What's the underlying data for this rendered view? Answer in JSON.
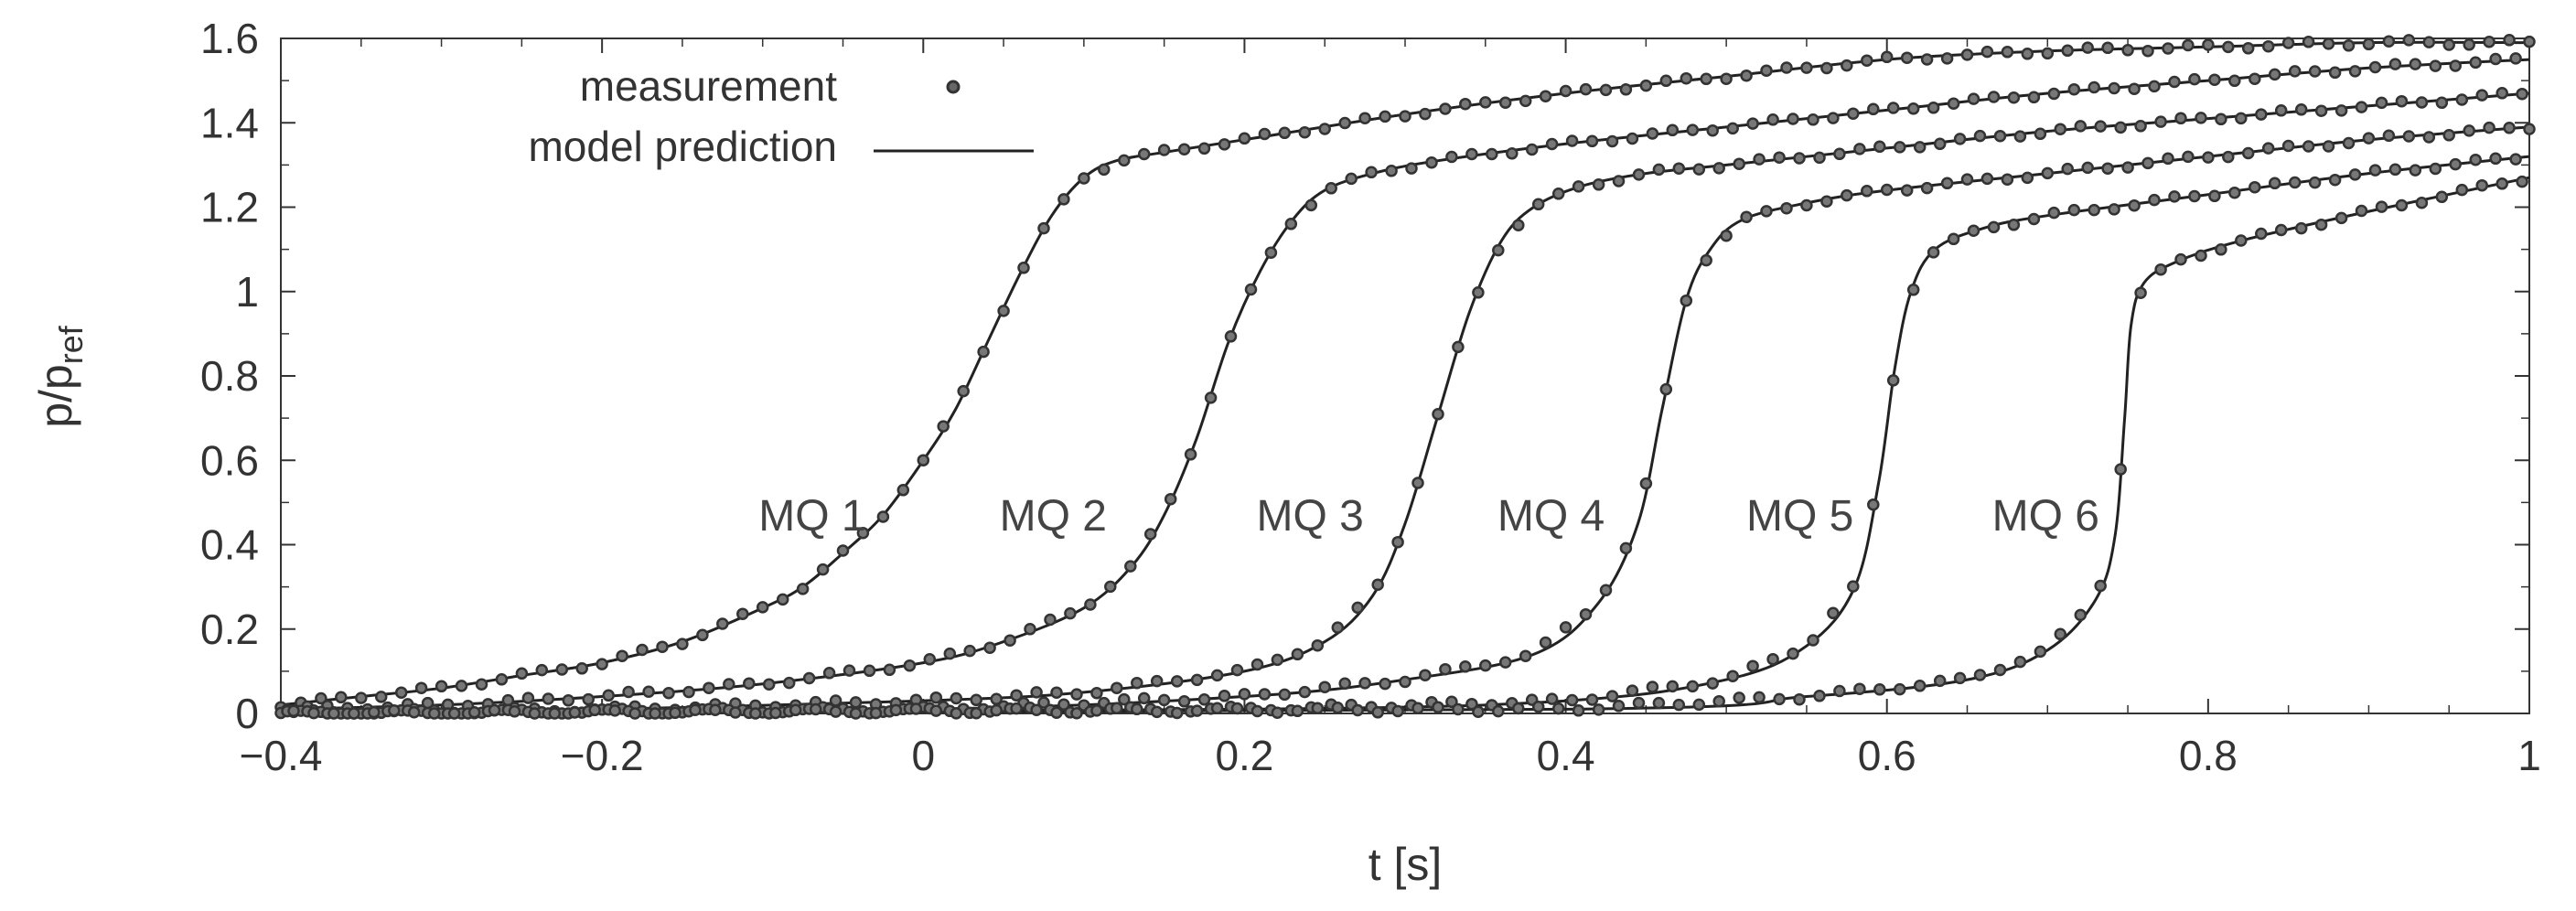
{
  "chart_data": {
    "type": "line",
    "title": "",
    "xlabel": "t [s]",
    "ylabel": "p/p",
    "ylabel_subscript": "ref",
    "xlim": [
      -0.4,
      1.0
    ],
    "ylim": [
      0,
      1.6
    ],
    "x_ticks": [
      -0.4,
      -0.2,
      0,
      0.2,
      0.4,
      0.6,
      0.8,
      1
    ],
    "x_tick_labels": [
      "−0.4",
      "−0.2",
      "0",
      "0.2",
      "0.4",
      "0.6",
      "0.8",
      "1"
    ],
    "y_ticks": [
      0,
      0.2,
      0.4,
      0.6,
      0.8,
      1,
      1.2,
      1.4,
      1.6
    ],
    "y_tick_labels": [
      "0",
      "0.2",
      "0.4",
      "0.6",
      "0.8",
      "1",
      "1.2",
      "1.4",
      "1.6"
    ],
    "grid": false,
    "legend": {
      "placement": "top-left",
      "entries": [
        {
          "label": "measurement",
          "style": "marker"
        },
        {
          "label": "model prediction",
          "style": "line"
        }
      ]
    },
    "series": [
      {
        "name": "MQ 1",
        "label_anchor": {
          "x": -0.03,
          "y": 0.47
        },
        "points": [
          [
            -0.4,
            0.02
          ],
          [
            -0.35,
            0.04
          ],
          [
            -0.3,
            0.06
          ],
          [
            -0.25,
            0.09
          ],
          [
            -0.2,
            0.12
          ],
          [
            -0.15,
            0.17
          ],
          [
            -0.1,
            0.25
          ],
          [
            -0.075,
            0.3
          ],
          [
            -0.05,
            0.38
          ],
          [
            -0.025,
            0.47
          ],
          [
            0,
            0.6
          ],
          [
            0.02,
            0.72
          ],
          [
            0.04,
            0.88
          ],
          [
            0.06,
            1.04
          ],
          [
            0.08,
            1.18
          ],
          [
            0.1,
            1.27
          ],
          [
            0.12,
            1.31
          ],
          [
            0.15,
            1.33
          ],
          [
            0.2,
            1.36
          ],
          [
            0.3,
            1.42
          ],
          [
            0.4,
            1.47
          ],
          [
            0.5,
            1.51
          ],
          [
            0.6,
            1.55
          ],
          [
            0.7,
            1.57
          ],
          [
            0.8,
            1.58
          ],
          [
            0.9,
            1.59
          ],
          [
            1.0,
            1.59
          ]
        ]
      },
      {
        "name": "MQ 2",
        "label_anchor": {
          "x": 0.12,
          "y": 0.47
        },
        "points": [
          [
            -0.4,
            0.01
          ],
          [
            -0.3,
            0.02
          ],
          [
            -0.2,
            0.04
          ],
          [
            -0.1,
            0.07
          ],
          [
            0,
            0.12
          ],
          [
            0.05,
            0.17
          ],
          [
            0.1,
            0.25
          ],
          [
            0.13,
            0.35
          ],
          [
            0.15,
            0.47
          ],
          [
            0.17,
            0.65
          ],
          [
            0.19,
            0.88
          ],
          [
            0.21,
            1.05
          ],
          [
            0.23,
            1.17
          ],
          [
            0.25,
            1.24
          ],
          [
            0.28,
            1.28
          ],
          [
            0.32,
            1.31
          ],
          [
            0.4,
            1.35
          ],
          [
            0.5,
            1.39
          ],
          [
            0.6,
            1.43
          ],
          [
            0.7,
            1.47
          ],
          [
            0.8,
            1.5
          ],
          [
            0.9,
            1.53
          ],
          [
            1.0,
            1.55
          ]
        ]
      },
      {
        "name": "MQ 3",
        "label_anchor": {
          "x": 0.28,
          "y": 0.47
        },
        "points": [
          [
            -0.4,
            0.0
          ],
          [
            -0.2,
            0.01
          ],
          [
            0,
            0.03
          ],
          [
            0.1,
            0.05
          ],
          [
            0.2,
            0.1
          ],
          [
            0.25,
            0.17
          ],
          [
            0.28,
            0.28
          ],
          [
            0.3,
            0.45
          ],
          [
            0.32,
            0.7
          ],
          [
            0.34,
            0.95
          ],
          [
            0.36,
            1.12
          ],
          [
            0.38,
            1.2
          ],
          [
            0.41,
            1.25
          ],
          [
            0.45,
            1.28
          ],
          [
            0.5,
            1.3
          ],
          [
            0.6,
            1.34
          ],
          [
            0.7,
            1.38
          ],
          [
            0.8,
            1.41
          ],
          [
            0.9,
            1.44
          ],
          [
            1.0,
            1.47
          ]
        ]
      },
      {
        "name": "MQ 4",
        "label_anchor": {
          "x": 0.43,
          "y": 0.47
        },
        "points": [
          [
            -0.4,
            0.0
          ],
          [
            0,
            0.01
          ],
          [
            0.2,
            0.04
          ],
          [
            0.3,
            0.08
          ],
          [
            0.38,
            0.14
          ],
          [
            0.42,
            0.26
          ],
          [
            0.445,
            0.45
          ],
          [
            0.46,
            0.72
          ],
          [
            0.475,
            0.98
          ],
          [
            0.49,
            1.1
          ],
          [
            0.51,
            1.17
          ],
          [
            0.55,
            1.21
          ],
          [
            0.6,
            1.24
          ],
          [
            0.7,
            1.28
          ],
          [
            0.8,
            1.32
          ],
          [
            0.9,
            1.36
          ],
          [
            1.0,
            1.39
          ]
        ]
      },
      {
        "name": "MQ 5",
        "label_anchor": {
          "x": 0.585,
          "y": 0.47
        },
        "points": [
          [
            -0.4,
            0.0
          ],
          [
            0.2,
            0.01
          ],
          [
            0.4,
            0.03
          ],
          [
            0.5,
            0.08
          ],
          [
            0.55,
            0.16
          ],
          [
            0.58,
            0.3
          ],
          [
            0.595,
            0.55
          ],
          [
            0.605,
            0.82
          ],
          [
            0.615,
            1.0
          ],
          [
            0.63,
            1.1
          ],
          [
            0.66,
            1.15
          ],
          [
            0.7,
            1.18
          ],
          [
            0.8,
            1.23
          ],
          [
            0.9,
            1.28
          ],
          [
            1.0,
            1.32
          ]
        ]
      },
      {
        "name": "MQ 6",
        "label_anchor": {
          "x": 0.738,
          "y": 0.47
        },
        "points": [
          [
            -0.4,
            0.0
          ],
          [
            0.4,
            0.01
          ],
          [
            0.55,
            0.04
          ],
          [
            0.65,
            0.08
          ],
          [
            0.7,
            0.15
          ],
          [
            0.73,
            0.27
          ],
          [
            0.742,
            0.42
          ],
          [
            0.748,
            0.7
          ],
          [
            0.752,
            0.92
          ],
          [
            0.76,
            1.02
          ],
          [
            0.78,
            1.07
          ],
          [
            0.82,
            1.12
          ],
          [
            0.9,
            1.19
          ],
          [
            1.0,
            1.27
          ]
        ]
      }
    ]
  }
}
